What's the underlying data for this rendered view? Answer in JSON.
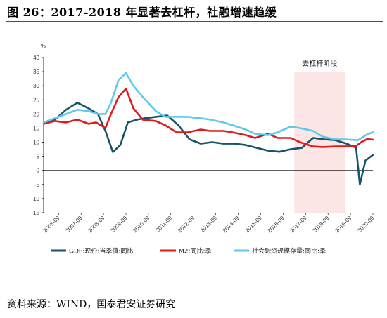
{
  "figure": {
    "title": "图 26：2017-2018 年显著去杠杆，社融增速趋缓",
    "source": "资料来源：WIND，国泰君安证券研究",
    "colors": {
      "title_rule": "#b0261f"
    }
  },
  "chart_data": {
    "type": "line",
    "y_unit": "%",
    "ylim": [
      -15,
      40
    ],
    "yticks": [
      "-15",
      "-10",
      "-5",
      "0",
      "5",
      "10",
      "15",
      "20",
      "25",
      "30",
      "35",
      "40"
    ],
    "xlim": [
      "2006-01",
      "2020-09"
    ],
    "xticks": [
      "2006-09",
      "2007-09",
      "2008-09",
      "2009-09",
      "2010-09",
      "2011-09",
      "2012-09",
      "2013-09",
      "2014-09",
      "2015-09",
      "2016-09",
      "2017-09",
      "2018-09",
      "2019-09",
      "2020-09"
    ],
    "grid": false,
    "legend_position": "bottom",
    "annotation": {
      "text": "去杠杆阶段",
      "x_start": "2017-03",
      "x_end": "2019-06",
      "color": "#fbe5e5"
    },
    "series": [
      {
        "name": "GDP:现价:当季值:同比",
        "color": "#17546b",
        "x": [
          "2006-01",
          "2006-07",
          "2007-01",
          "2007-07",
          "2008-01",
          "2008-06",
          "2008-10",
          "2009-02",
          "2009-06",
          "2009-10",
          "2010-03",
          "2010-07",
          "2011-01",
          "2011-07",
          "2012-01",
          "2012-07",
          "2013-01",
          "2013-07",
          "2014-01",
          "2014-07",
          "2015-01",
          "2015-07",
          "2016-01",
          "2016-07",
          "2017-01",
          "2017-07",
          "2018-01",
          "2018-07",
          "2019-01",
          "2019-07",
          "2019-12",
          "2020-02",
          "2020-05",
          "2020-09"
        ],
        "y": [
          16.5,
          18,
          21.5,
          24,
          22,
          20,
          14,
          6.5,
          9,
          17,
          18,
          18.5,
          19,
          19.5,
          16,
          11,
          9.5,
          10,
          9.5,
          9.5,
          9,
          8,
          7,
          6.6,
          7.5,
          8,
          11.5,
          11,
          10.7,
          9.5,
          8,
          -5,
          3.5,
          5.5
        ]
      },
      {
        "name": "M2:同比:季",
        "color": "#e01b1b",
        "x": [
          "2006-01",
          "2006-07",
          "2007-01",
          "2007-07",
          "2008-01",
          "2008-05",
          "2008-10",
          "2009-01",
          "2009-05",
          "2009-09",
          "2010-01",
          "2010-06",
          "2011-01",
          "2011-06",
          "2011-12",
          "2012-06",
          "2013-01",
          "2013-06",
          "2014-01",
          "2014-06",
          "2015-01",
          "2015-06",
          "2016-01",
          "2016-06",
          "2017-01",
          "2017-06",
          "2018-01",
          "2018-06",
          "2019-01",
          "2019-06",
          "2019-12",
          "2020-03",
          "2020-06",
          "2020-09"
        ],
        "y": [
          16.5,
          17.5,
          17,
          18,
          16.5,
          17,
          15,
          20,
          26,
          29,
          22,
          18,
          17.5,
          16,
          13.5,
          13.5,
          14.5,
          14,
          14,
          13.5,
          12.5,
          11.5,
          13,
          11.5,
          11.5,
          10,
          8.5,
          8.3,
          8.5,
          8.5,
          8.7,
          10.1,
          11.1,
          10.9
        ]
      },
      {
        "name": "社会融资规模存量:同比:季",
        "color": "#5ec8ef",
        "x": [
          "2006-01",
          "2006-07",
          "2007-01",
          "2007-07",
          "2008-01",
          "2008-06",
          "2008-10",
          "2009-01",
          "2009-05",
          "2009-09",
          "2010-01",
          "2010-06",
          "2011-01",
          "2011-06",
          "2012-01",
          "2012-06",
          "2013-01",
          "2013-06",
          "2014-01",
          "2014-06",
          "2015-01",
          "2015-06",
          "2016-01",
          "2016-06",
          "2017-01",
          "2017-06",
          "2018-01",
          "2018-06",
          "2019-01",
          "2019-06",
          "2020-01",
          "2020-06",
          "2020-09"
        ],
        "y": [
          17,
          18.5,
          20,
          21.5,
          21,
          20,
          20,
          24,
          32,
          34.5,
          30,
          26,
          21,
          19,
          19,
          19,
          18.5,
          18,
          17,
          16,
          14.5,
          13,
          12.5,
          13.5,
          15.5,
          15,
          14,
          12,
          11,
          11,
          10.7,
          12.8,
          13.5
        ]
      }
    ]
  }
}
